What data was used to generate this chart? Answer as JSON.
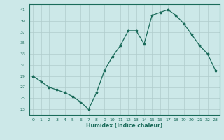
{
  "x": [
    0,
    1,
    2,
    3,
    4,
    5,
    6,
    7,
    8,
    9,
    10,
    11,
    12,
    13,
    14,
    15,
    16,
    17,
    18,
    19,
    20,
    21,
    22,
    23
  ],
  "y": [
    29,
    28,
    27,
    26.5,
    26,
    25.3,
    24.3,
    23,
    26,
    30,
    32.5,
    34.5,
    37.2,
    37.2,
    34.8,
    40.0,
    40.5,
    41.0,
    40.0,
    38.5,
    36.5,
    34.5,
    33.0,
    30.0
  ],
  "xlabel": "Humidex (Indice chaleur)",
  "ylabel": "",
  "xlim": [
    -0.5,
    23.5
  ],
  "ylim": [
    22,
    42
  ],
  "yticks": [
    23,
    25,
    27,
    29,
    31,
    33,
    35,
    37,
    39,
    41
  ],
  "xticks": [
    0,
    1,
    2,
    3,
    4,
    5,
    6,
    7,
    8,
    9,
    10,
    11,
    12,
    13,
    14,
    15,
    16,
    17,
    18,
    19,
    20,
    21,
    22,
    23
  ],
  "line_color": "#1a6b5a",
  "marker": "*",
  "bg_color": "#cce8e8",
  "grid_color": "#b0cccc"
}
